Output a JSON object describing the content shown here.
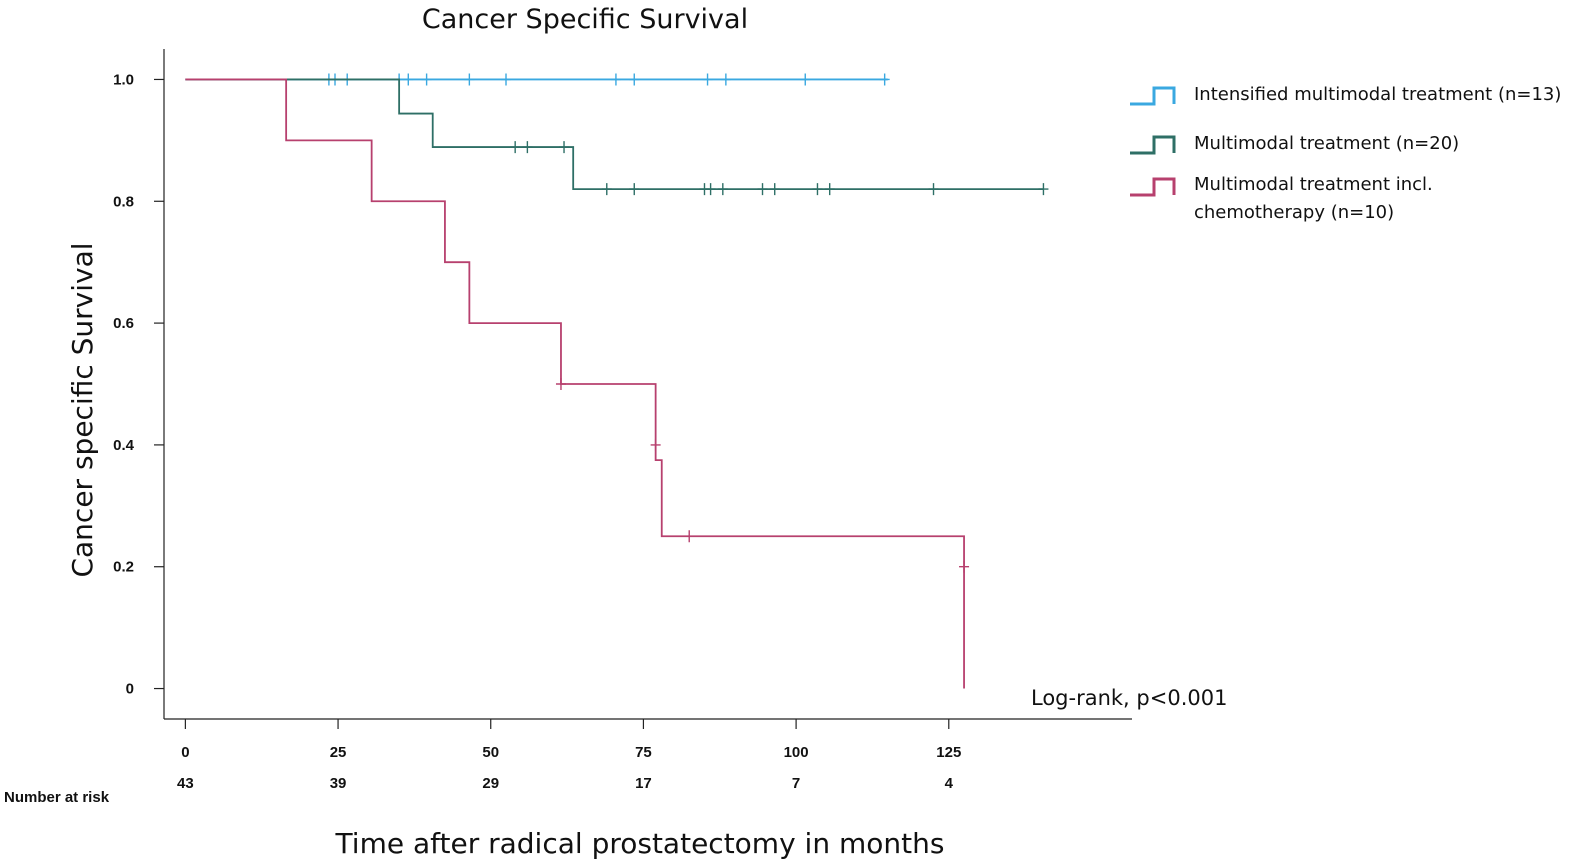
{
  "chart_data": {
    "type": "line",
    "subtype": "kaplan-meier",
    "title": "Cancer Specific Survival",
    "xlabel": "Time after radical prostatectomy in months",
    "ylabel": "Cancer specific Survival",
    "xlim": [
      -3.5,
      155
    ],
    "ylim": [
      -0.05,
      1.05
    ],
    "xticks": [
      0,
      25,
      50,
      75,
      100,
      125
    ],
    "xtick_labels": [
      "0",
      "25",
      "50",
      "75",
      "100",
      "125"
    ],
    "yticks": [
      0,
      0.2,
      0.4,
      0.6,
      0.8,
      1.0
    ],
    "ytick_labels": [
      "0",
      "0.2",
      "0.4",
      "0.6",
      "0.8",
      "1.0"
    ],
    "number_at_risk": {
      "label": "Number at risk",
      "values": [
        "43",
        "39",
        "29",
        "17",
        "7",
        "4"
      ]
    },
    "annotation": "Log-rank, p<0.001",
    "legend_position": "top-right",
    "series": [
      {
        "name": "Intensified multimodal treatment (n=13)",
        "legend_lines": [
          "Intensified multimodal treatment (n=13)"
        ],
        "color": "#3AA8E0",
        "steps": [
          [
            0,
            1.0
          ],
          [
            115,
            1.0
          ]
        ],
        "censored": [
          [
            23.5,
            1.0
          ],
          [
            24.5,
            1.0
          ],
          [
            26.5,
            1.0
          ],
          [
            35,
            1.0
          ],
          [
            36.5,
            1.0
          ],
          [
            39.5,
            1.0
          ],
          [
            46.5,
            1.0
          ],
          [
            52.5,
            1.0
          ],
          [
            70.5,
            1.0
          ],
          [
            73.5,
            1.0
          ],
          [
            85.5,
            1.0
          ],
          [
            88.5,
            1.0
          ],
          [
            101.5,
            1.0
          ],
          [
            114.5,
            1.0
          ]
        ]
      },
      {
        "name": "Multimodal treatment (n=20)",
        "legend_lines": [
          "Multimodal treatment (n=20)"
        ],
        "color": "#2E6F66",
        "steps": [
          [
            0,
            1.0
          ],
          [
            35,
            0.944
          ],
          [
            40.5,
            0.889
          ],
          [
            63.5,
            0.82
          ],
          [
            140.5,
            0.82
          ]
        ],
        "censored": [
          [
            54,
            0.889
          ],
          [
            56,
            0.889
          ],
          [
            62,
            0.889
          ],
          [
            69,
            0.82
          ],
          [
            73.5,
            0.82
          ],
          [
            85,
            0.82
          ],
          [
            86,
            0.82
          ],
          [
            88,
            0.82
          ],
          [
            94.5,
            0.82
          ],
          [
            96.5,
            0.82
          ],
          [
            103.5,
            0.82
          ],
          [
            105.5,
            0.82
          ],
          [
            122.5,
            0.82
          ],
          [
            140.5,
            0.82
          ]
        ]
      },
      {
        "name": "Multimodal treatment incl. chemotherapy (n=10)",
        "legend_lines": [
          "Multimodal treatment incl.",
          "chemotherapy (n=10)"
        ],
        "color": "#B7406E",
        "steps": [
          [
            0,
            1.0
          ],
          [
            16.5,
            0.9
          ],
          [
            30.5,
            0.8
          ],
          [
            42.5,
            0.7
          ],
          [
            46.5,
            0.6
          ],
          [
            61.5,
            0.5
          ],
          [
            77,
            0.375
          ],
          [
            78,
            0.25
          ],
          [
            127.5,
            0.0
          ]
        ],
        "censored": [
          [
            61.5,
            0.5
          ],
          [
            77,
            0.4
          ],
          [
            82.5,
            0.25
          ],
          [
            127.5,
            0.2
          ]
        ]
      }
    ]
  }
}
